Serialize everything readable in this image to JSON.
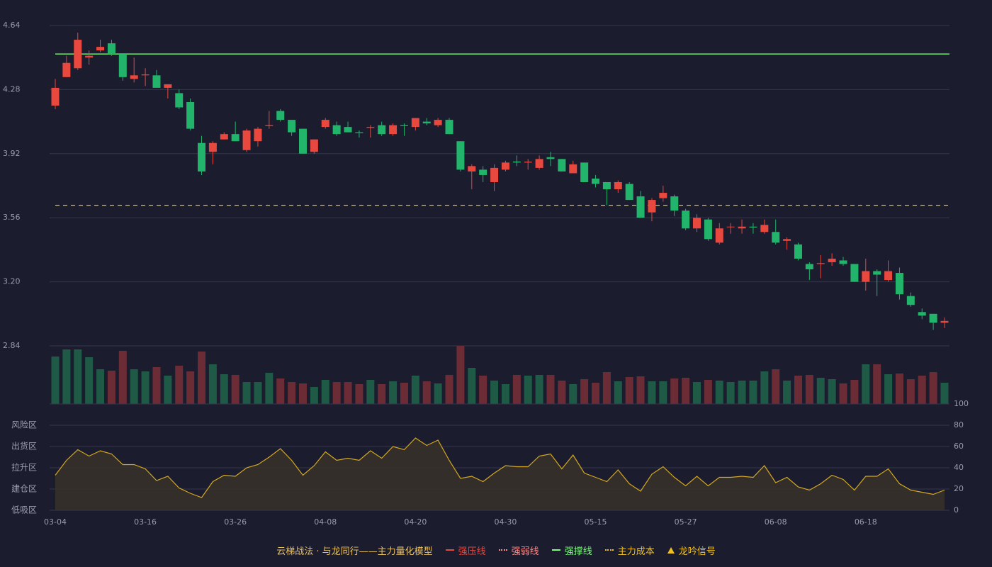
{
  "chart_data": {
    "type": "candlestick",
    "categories": [
      "03-04",
      null,
      null,
      null,
      null,
      null,
      null,
      null,
      "03-16",
      null,
      null,
      null,
      null,
      null,
      null,
      null,
      "03-26",
      null,
      null,
      null,
      null,
      null,
      null,
      null,
      "04-08",
      null,
      null,
      null,
      null,
      null,
      null,
      null,
      "04-20",
      null,
      null,
      null,
      null,
      null,
      null,
      null,
      "04-30",
      null,
      null,
      null,
      null,
      null,
      null,
      null,
      "05-15",
      null,
      null,
      null,
      null,
      null,
      null,
      null,
      "05-27",
      null,
      null,
      null,
      null,
      null,
      null,
      null,
      "06-08",
      null,
      null,
      null,
      null,
      null,
      null,
      null,
      "06-18",
      null,
      null,
      null,
      null,
      null,
      null,
      null
    ],
    "open": [
      4.19,
      4.35,
      4.4,
      4.46,
      4.5,
      4.54,
      4.48,
      4.34,
      4.36,
      4.36,
      4.29,
      4.26,
      4.21,
      3.98,
      3.93,
      4.0,
      4.03,
      3.94,
      3.99,
      4.075,
      4.16,
      4.11,
      4.06,
      3.93,
      4.07,
      4.08,
      4.07,
      4.04,
      4.065,
      4.08,
      4.03,
      4.08,
      4.07,
      4.1,
      4.08,
      4.11,
      3.99,
      3.82,
      3.83,
      3.76,
      3.83,
      3.876,
      3.87,
      3.84,
      3.9,
      3.89,
      3.81,
      3.87,
      3.78,
      3.76,
      3.72,
      3.75,
      3.68,
      3.59,
      3.67,
      3.68,
      3.6,
      3.5,
      3.55,
      3.42,
      3.507,
      3.5,
      3.51,
      3.48,
      3.48,
      3.43,
      3.41,
      3.3,
      3.3,
      3.31,
      3.32,
      3.3,
      3.2,
      3.26,
      3.21,
      3.25,
      3.12,
      3.03,
      3.02,
      2.97
    ],
    "high": [
      4.34,
      4.47,
      4.6,
      4.5,
      4.56,
      4.56,
      4.48,
      4.46,
      4.4,
      4.39,
      4.31,
      4.28,
      4.23,
      4.02,
      3.99,
      4.04,
      4.1,
      4.06,
      4.07,
      4.16,
      4.17,
      4.11,
      4.06,
      4.0,
      4.12,
      4.1,
      4.1,
      4.05,
      4.08,
      4.1,
      4.09,
      4.09,
      4.12,
      4.12,
      4.12,
      4.12,
      3.99,
      3.86,
      3.85,
      3.86,
      3.88,
      3.91,
      3.89,
      3.91,
      3.93,
      3.89,
      3.88,
      3.87,
      3.8,
      3.76,
      3.77,
      3.76,
      3.71,
      3.67,
      3.74,
      3.69,
      3.61,
      3.58,
      3.56,
      3.53,
      3.53,
      3.55,
      3.53,
      3.55,
      3.55,
      3.45,
      3.42,
      3.31,
      3.35,
      3.36,
      3.34,
      3.3,
      3.33,
      3.27,
      3.32,
      3.28,
      3.14,
      3.05,
      3.02,
      3.0
    ],
    "low": [
      4.17,
      4.35,
      4.39,
      4.42,
      4.49,
      4.47,
      4.33,
      4.32,
      4.3,
      4.29,
      4.23,
      4.17,
      4.05,
      3.8,
      3.86,
      4.0,
      3.99,
      3.93,
      3.96,
      4.06,
      4.1,
      4.02,
      3.92,
      3.92,
      4.06,
      4.02,
      4.04,
      4.01,
      4.01,
      4.02,
      4.02,
      4.02,
      4.05,
      4.08,
      4.07,
      4.03,
      3.82,
      3.72,
      3.76,
      3.71,
      3.82,
      3.85,
      3.83,
      3.83,
      3.85,
      3.82,
      3.81,
      3.76,
      3.73,
      3.63,
      3.7,
      3.66,
      3.56,
      3.54,
      3.65,
      3.57,
      3.49,
      3.48,
      3.43,
      3.41,
      3.47,
      3.47,
      3.47,
      3.47,
      3.41,
      3.38,
      3.32,
      3.21,
      3.22,
      3.29,
      3.29,
      3.2,
      3.15,
      3.12,
      3.2,
      3.1,
      3.06,
      2.99,
      2.93,
      2.94
    ],
    "close": [
      4.29,
      4.43,
      4.56,
      4.47,
      4.52,
      4.48,
      4.35,
      4.36,
      4.365,
      4.29,
      4.31,
      4.18,
      4.06,
      3.82,
      3.98,
      4.03,
      3.99,
      4.05,
      4.06,
      4.08,
      4.11,
      4.04,
      3.92,
      4.0,
      4.11,
      4.03,
      4.04,
      4.035,
      4.07,
      4.03,
      4.08,
      4.075,
      4.12,
      4.09,
      4.11,
      4.03,
      3.83,
      3.85,
      3.8,
      3.84,
      3.87,
      3.87,
      3.875,
      3.89,
      3.89,
      3.82,
      3.86,
      3.76,
      3.75,
      3.72,
      3.76,
      3.66,
      3.56,
      3.66,
      3.7,
      3.6,
      3.5,
      3.56,
      3.44,
      3.5,
      3.51,
      3.51,
      3.505,
      3.52,
      3.42,
      3.44,
      3.33,
      3.27,
      3.305,
      3.33,
      3.3,
      3.2,
      3.26,
      3.24,
      3.26,
      3.13,
      3.07,
      3.01,
      2.97,
      2.98
    ],
    "up_color": "#e8483e",
    "down_color": "#22b46a",
    "ylim": [
      2.84,
      4.64
    ],
    "yticks": [
      2.84,
      {
        "value": 3.2,
        "label": "3.20"
      },
      3.56,
      3.92,
      4.28,
      4.64
    ],
    "grid": true,
    "levels": [
      {
        "value": 4.48,
        "color": "#7dff7d",
        "style": "solid"
      },
      {
        "value": 3.63,
        "color": "#f0c020",
        "style": "dashed"
      }
    ],
    "volume": {
      "values": [
        67,
        77,
        77,
        66,
        49,
        47,
        75,
        49,
        46,
        52,
        40,
        54,
        46,
        74,
        56,
        42,
        41,
        31,
        31,
        44,
        36,
        31,
        29,
        24,
        34,
        31,
        31,
        28,
        34,
        28,
        32,
        30,
        40,
        32,
        29,
        41,
        82,
        51,
        40,
        33,
        28,
        41,
        40,
        41,
        41,
        33,
        28,
        35,
        30,
        45,
        32,
        38,
        39,
        32,
        32,
        36,
        37,
        31,
        34,
        33,
        31,
        33,
        33,
        46,
        49,
        33,
        40,
        41,
        37,
        35,
        29,
        34,
        56,
        56,
        42,
        43,
        35,
        40,
        45,
        30
      ],
      "colors": [
        "#1e5a45",
        "#1e5a45",
        "#1e5a45",
        "#1e5a45",
        "#1e5a45",
        "#6b2c35",
        "#6b2c35",
        "#1e5a45",
        "#1e5a45",
        "#6b2c35",
        "#1e5a45",
        "#6b2c35",
        "#6b2c35",
        "#6b2c35",
        "#1e5a45",
        "#1e5a45",
        "#6b2c35",
        "#1e5a45",
        "#1e5a45",
        "#1e5a45",
        "#6b2c35",
        "#6b2c35",
        "#6b2c35",
        "#1e5a45",
        "#1e5a45",
        "#6b2c35",
        "#6b2c35",
        "#6b2c35",
        "#1e5a45",
        "#6b2c35",
        "#1e5a45",
        "#6b2c35",
        "#1e5a45",
        "#6b2c35",
        "#1e5a45",
        "#6b2c35",
        "#6b2c35",
        "#1e5a45",
        "#6b2c35",
        "#1e5a45",
        "#1e5a45",
        "#6b2c35",
        "#1e5a45",
        "#1e5a45",
        "#6b2c35",
        "#6b2c35",
        "#1e5a45",
        "#6b2c35",
        "#6b2c35",
        "#6b2c35",
        "#1e5a45",
        "#6b2c35",
        "#6b2c35",
        "#1e5a45",
        "#1e5a45",
        "#6b2c35",
        "#6b2c35",
        "#1e5a45",
        "#6b2c35",
        "#1e5a45",
        "#1e5a45",
        "#1e5a45",
        "#1e5a45",
        "#1e5a45",
        "#6b2c35",
        "#1e5a45",
        "#6b2c35",
        "#6b2c35",
        "#1e5a45",
        "#1e5a45",
        "#6b2c35",
        "#6b2c35",
        "#1e5a45",
        "#6b2c35",
        "#1e5a45",
        "#6b2c35",
        "#6b2c35",
        "#6b2c35",
        "#6b2c35",
        "#1e5a45"
      ]
    },
    "oscillator": {
      "values": [
        33,
        47,
        57,
        51,
        56,
        53,
        43,
        43,
        39,
        28,
        32,
        21,
        16,
        12,
        27,
        33,
        32,
        40,
        43,
        50,
        58,
        47,
        33,
        42,
        55,
        47,
        49,
        47,
        56,
        49,
        60,
        57,
        68,
        61,
        66,
        47,
        30,
        32,
        27,
        35,
        42,
        41,
        41,
        51,
        53,
        39,
        52,
        35,
        31,
        27,
        38,
        25,
        18,
        34,
        41,
        31,
        23,
        32,
        23,
        31,
        31,
        32,
        31,
        42,
        26,
        31,
        22,
        19,
        25,
        33,
        29,
        19,
        32,
        32,
        39,
        25,
        19,
        17,
        15,
        19
      ],
      "color": "#d4a820",
      "fill": "#3a3328",
      "ylim": [
        0,
        100
      ],
      "yticks": [
        0,
        20,
        40,
        60,
        80,
        100
      ],
      "ytick_colors": [
        "#e84040",
        "#f0a030",
        "#4f8ff0",
        "#e040e0",
        "#f0a030",
        "#40e040"
      ],
      "zones": [
        {
          "label": "风险区",
          "value": 80,
          "color": "#f0a030"
        },
        {
          "label": "出货区",
          "value": 60,
          "color": "#e040e0"
        },
        {
          "label": "拉升区",
          "value": 40,
          "color": "#4f8ff0"
        },
        {
          "label": "建仓区",
          "value": 20,
          "color": "#f05030"
        },
        {
          "label": "低吸区",
          "value": 0,
          "color": "#e84040"
        }
      ]
    },
    "legend": {
      "title": "云梯战法 · 与龙同行——主力量化模型",
      "items": [
        {
          "name": "强压线",
          "color": "#e8483e",
          "style": "solid"
        },
        {
          "name": "强弱线",
          "color": "#ff8c8c",
          "style": "dashed"
        },
        {
          "name": "强撑线",
          "color": "#7dff7d",
          "style": "solid"
        },
        {
          "name": "主力成本",
          "color": "#f0c020",
          "style": "dashed"
        },
        {
          "name": "龙吟信号",
          "color": "#f0c020",
          "style": "triangle"
        }
      ]
    }
  }
}
